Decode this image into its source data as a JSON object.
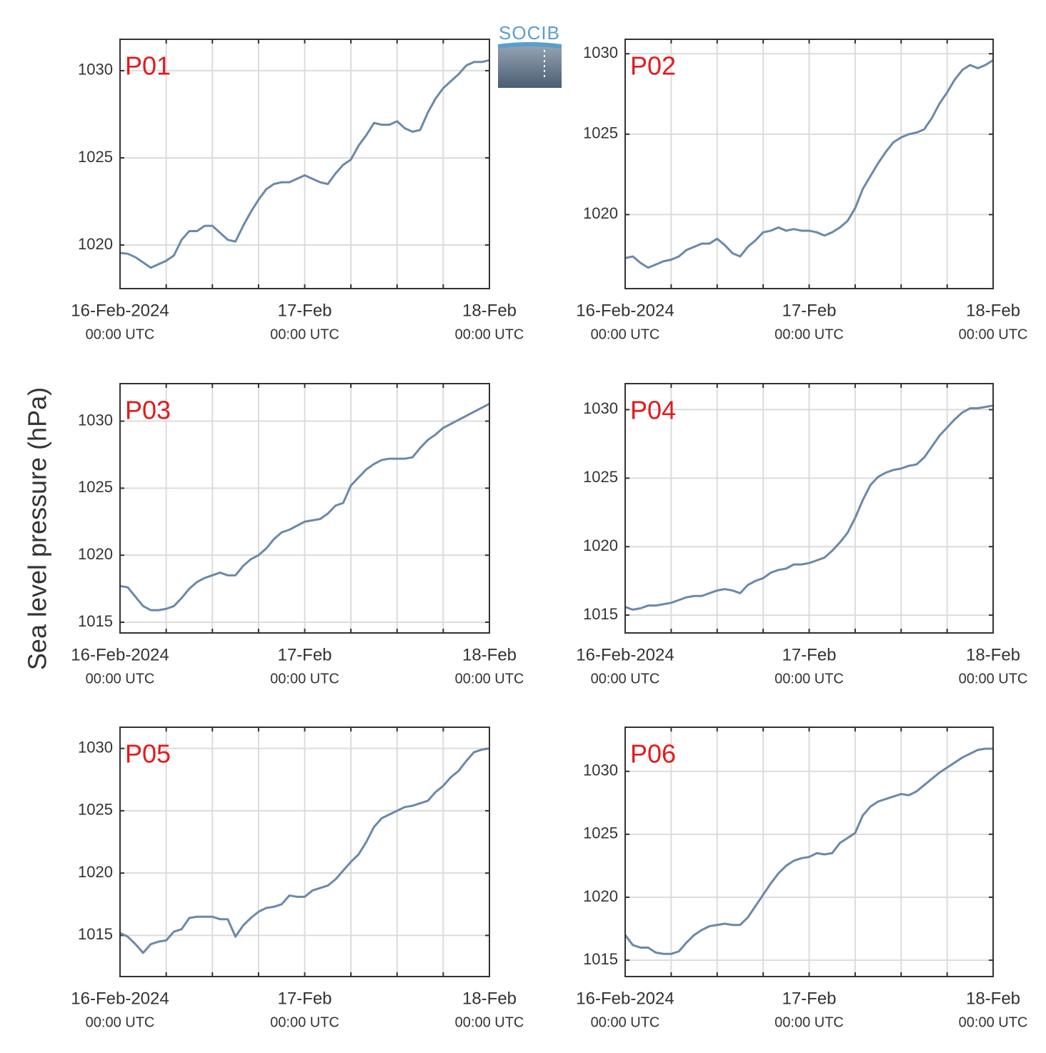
{
  "ylabel": "Sea level pressure (hPa)",
  "logo": "SOCIB",
  "chart_data": [
    {
      "type": "line",
      "title": "P01",
      "color": "#6a89aa",
      "grid": true,
      "x": [
        "2024-02-16 00:00",
        "2024-02-16 01:00",
        "2024-02-16 02:00",
        "2024-02-16 03:00",
        "2024-02-16 04:00",
        "2024-02-16 05:00",
        "2024-02-16 06:00",
        "2024-02-16 07:00",
        "2024-02-16 08:00",
        "2024-02-16 09:00",
        "2024-02-16 10:00",
        "2024-02-16 11:00",
        "2024-02-16 12:00",
        "2024-02-16 13:00",
        "2024-02-16 14:00",
        "2024-02-16 15:00",
        "2024-02-16 16:00",
        "2024-02-16 17:00",
        "2024-02-16 18:00",
        "2024-02-16 19:00",
        "2024-02-16 20:00",
        "2024-02-16 21:00",
        "2024-02-16 22:00",
        "2024-02-16 23:00",
        "2024-02-17 00:00",
        "2024-02-17 01:00",
        "2024-02-17 02:00",
        "2024-02-17 03:00",
        "2024-02-17 04:00",
        "2024-02-17 05:00",
        "2024-02-17 06:00",
        "2024-02-17 07:00",
        "2024-02-17 08:00",
        "2024-02-17 09:00",
        "2024-02-17 10:00",
        "2024-02-17 11:00",
        "2024-02-17 12:00",
        "2024-02-17 13:00",
        "2024-02-17 14:00",
        "2024-02-17 15:00",
        "2024-02-17 16:00",
        "2024-02-17 17:00",
        "2024-02-17 18:00",
        "2024-02-17 19:00",
        "2024-02-17 20:00",
        "2024-02-17 21:00",
        "2024-02-17 22:00",
        "2024-02-17 23:00",
        "2024-02-18 00:00"
      ],
      "values": [
        1019.55,
        1019.5,
        1019.3,
        1019.0,
        1018.7,
        1018.9,
        1019.1,
        1019.4,
        1020.3,
        1020.8,
        1020.8,
        1021.1,
        1021.1,
        1020.7,
        1020.3,
        1020.2,
        1021.1,
        1021.9,
        1022.6,
        1023.2,
        1023.5,
        1023.6,
        1023.6,
        1023.8,
        1024.0,
        1023.8,
        1023.6,
        1023.5,
        1024.1,
        1024.6,
        1024.9,
        1025.7,
        1026.3,
        1027.0,
        1026.9,
        1026.9,
        1027.1,
        1026.7,
        1026.5,
        1026.6,
        1027.6,
        1028.4,
        1029.0,
        1029.4,
        1029.8,
        1030.3,
        1030.5,
        1030.5,
        1030.6
      ],
      "xlim": [
        "2024-02-16 00:00",
        "2024-02-18 00:00"
      ],
      "xticks": [
        {
          "value": "2024-02-16 00:00",
          "label": [
            "16-Feb-2024",
            "00:00 UTC"
          ]
        },
        "2024-02-16 06:00",
        "2024-02-16 12:00",
        "2024-02-16 18:00",
        {
          "value": "2024-02-17 00:00",
          "label": [
            "17-Feb",
            "00:00 UTC"
          ]
        },
        "2024-02-17 06:00",
        "2024-02-17 12:00",
        "2024-02-17 18:00",
        {
          "value": "2024-02-18 00:00",
          "label": [
            "18-Feb",
            "00:00 UTC"
          ]
        }
      ],
      "ylim": [
        1017.5,
        1031.8
      ],
      "yticks": [
        1020,
        1025,
        1030
      ]
    },
    {
      "type": "line",
      "title": "P02",
      "color": "#6a89aa",
      "grid": true,
      "x": [
        "2024-02-16 00:00",
        "2024-02-16 01:00",
        "2024-02-16 02:00",
        "2024-02-16 03:00",
        "2024-02-16 04:00",
        "2024-02-16 05:00",
        "2024-02-16 06:00",
        "2024-02-16 07:00",
        "2024-02-16 08:00",
        "2024-02-16 09:00",
        "2024-02-16 10:00",
        "2024-02-16 11:00",
        "2024-02-16 12:00",
        "2024-02-16 13:00",
        "2024-02-16 14:00",
        "2024-02-16 15:00",
        "2024-02-16 16:00",
        "2024-02-16 17:00",
        "2024-02-16 18:00",
        "2024-02-16 19:00",
        "2024-02-16 20:00",
        "2024-02-16 21:00",
        "2024-02-16 22:00",
        "2024-02-16 23:00",
        "2024-02-17 00:00",
        "2024-02-17 01:00",
        "2024-02-17 02:00",
        "2024-02-17 03:00",
        "2024-02-17 04:00",
        "2024-02-17 05:00",
        "2024-02-17 06:00",
        "2024-02-17 07:00",
        "2024-02-17 08:00",
        "2024-02-17 09:00",
        "2024-02-17 10:00",
        "2024-02-17 11:00",
        "2024-02-17 12:00",
        "2024-02-17 13:00",
        "2024-02-17 14:00",
        "2024-02-17 15:00",
        "2024-02-17 16:00",
        "2024-02-17 17:00",
        "2024-02-17 18:00",
        "2024-02-17 19:00",
        "2024-02-17 20:00",
        "2024-02-17 21:00",
        "2024-02-17 22:00",
        "2024-02-17 23:00",
        "2024-02-18 00:00"
      ],
      "values": [
        1017.3,
        1017.4,
        1017.0,
        1016.7,
        1016.9,
        1017.1,
        1017.2,
        1017.4,
        1017.8,
        1018.0,
        1018.2,
        1018.2,
        1018.5,
        1018.1,
        1017.6,
        1017.4,
        1018.0,
        1018.4,
        1018.9,
        1019.0,
        1019.2,
        1019.0,
        1019.1,
        1019.0,
        1019.0,
        1018.9,
        1018.7,
        1018.9,
        1019.2,
        1019.6,
        1020.4,
        1021.6,
        1022.4,
        1023.2,
        1023.9,
        1024.5,
        1024.8,
        1025.0,
        1025.1,
        1025.3,
        1026.0,
        1026.9,
        1027.6,
        1028.4,
        1029.0,
        1029.3,
        1029.1,
        1029.3,
        1029.6
      ],
      "xlim": [
        "2024-02-16 00:00",
        "2024-02-18 00:00"
      ],
      "xticks": [
        {
          "value": "2024-02-16 00:00",
          "label": [
            "16-Feb-2024",
            "00:00 UTC"
          ]
        },
        "2024-02-16 06:00",
        "2024-02-16 12:00",
        "2024-02-16 18:00",
        {
          "value": "2024-02-17 00:00",
          "label": [
            "17-Feb",
            "00:00 UTC"
          ]
        },
        "2024-02-17 06:00",
        "2024-02-17 12:00",
        "2024-02-17 18:00",
        {
          "value": "2024-02-18 00:00",
          "label": [
            "18-Feb",
            "00:00 UTC"
          ]
        }
      ],
      "ylim": [
        1015.4,
        1030.9
      ],
      "yticks": [
        1020,
        1025,
        1030
      ]
    },
    {
      "type": "line",
      "title": "P03",
      "color": "#6a89aa",
      "grid": true,
      "x": [
        "2024-02-16 00:00",
        "2024-02-16 01:00",
        "2024-02-16 02:00",
        "2024-02-16 03:00",
        "2024-02-16 04:00",
        "2024-02-16 05:00",
        "2024-02-16 06:00",
        "2024-02-16 07:00",
        "2024-02-16 08:00",
        "2024-02-16 09:00",
        "2024-02-16 10:00",
        "2024-02-16 11:00",
        "2024-02-16 12:00",
        "2024-02-16 13:00",
        "2024-02-16 14:00",
        "2024-02-16 15:00",
        "2024-02-16 16:00",
        "2024-02-16 17:00",
        "2024-02-16 18:00",
        "2024-02-16 19:00",
        "2024-02-16 20:00",
        "2024-02-16 21:00",
        "2024-02-16 22:00",
        "2024-02-16 23:00",
        "2024-02-17 00:00",
        "2024-02-17 01:00",
        "2024-02-17 02:00",
        "2024-02-17 03:00",
        "2024-02-17 04:00",
        "2024-02-17 05:00",
        "2024-02-17 06:00",
        "2024-02-17 07:00",
        "2024-02-17 08:00",
        "2024-02-17 09:00",
        "2024-02-17 10:00",
        "2024-02-17 11:00",
        "2024-02-17 12:00",
        "2024-02-17 13:00",
        "2024-02-17 14:00",
        "2024-02-17 15:00",
        "2024-02-17 16:00",
        "2024-02-17 17:00",
        "2024-02-17 18:00",
        "2024-02-17 19:00",
        "2024-02-17 20:00",
        "2024-02-17 21:00",
        "2024-02-17 22:00",
        "2024-02-17 23:00",
        "2024-02-18 00:00"
      ],
      "values": [
        1017.7,
        1017.6,
        1016.9,
        1016.2,
        1015.9,
        1015.9,
        1016.0,
        1016.2,
        1016.8,
        1017.5,
        1018.0,
        1018.3,
        1018.5,
        1018.7,
        1018.5,
        1018.5,
        1019.2,
        1019.7,
        1020.0,
        1020.5,
        1021.2,
        1021.7,
        1021.9,
        1022.2,
        1022.5,
        1022.6,
        1022.7,
        1023.1,
        1023.7,
        1023.9,
        1025.2,
        1025.8,
        1026.4,
        1026.8,
        1027.1,
        1027.2,
        1027.2,
        1027.2,
        1027.3,
        1028.0,
        1028.6,
        1029.0,
        1029.5,
        1029.8,
        1030.1,
        1030.4,
        1030.7,
        1031.0,
        1031.3
      ],
      "xlim": [
        "2024-02-16 00:00",
        "2024-02-18 00:00"
      ],
      "xticks": [
        {
          "value": "2024-02-16 00:00",
          "label": [
            "16-Feb-2024",
            "00:00 UTC"
          ]
        },
        "2024-02-16 06:00",
        "2024-02-16 12:00",
        "2024-02-16 18:00",
        {
          "value": "2024-02-17 00:00",
          "label": [
            "17-Feb",
            "00:00 UTC"
          ]
        },
        "2024-02-17 06:00",
        "2024-02-17 12:00",
        "2024-02-17 18:00",
        {
          "value": "2024-02-18 00:00",
          "label": [
            "18-Feb",
            "00:00 UTC"
          ]
        }
      ],
      "ylim": [
        1014.2,
        1032.8
      ],
      "yticks": [
        1015,
        1020,
        1025,
        1030
      ]
    },
    {
      "type": "line",
      "title": "P04",
      "color": "#6a89aa",
      "grid": true,
      "x": [
        "2024-02-16 00:00",
        "2024-02-16 01:00",
        "2024-02-16 02:00",
        "2024-02-16 03:00",
        "2024-02-16 04:00",
        "2024-02-16 05:00",
        "2024-02-16 06:00",
        "2024-02-16 07:00",
        "2024-02-16 08:00",
        "2024-02-16 09:00",
        "2024-02-16 10:00",
        "2024-02-16 11:00",
        "2024-02-16 12:00",
        "2024-02-16 13:00",
        "2024-02-16 14:00",
        "2024-02-16 15:00",
        "2024-02-16 16:00",
        "2024-02-16 17:00",
        "2024-02-16 18:00",
        "2024-02-16 19:00",
        "2024-02-16 20:00",
        "2024-02-16 21:00",
        "2024-02-16 22:00",
        "2024-02-16 23:00",
        "2024-02-17 00:00",
        "2024-02-17 01:00",
        "2024-02-17 02:00",
        "2024-02-17 03:00",
        "2024-02-17 04:00",
        "2024-02-17 05:00",
        "2024-02-17 06:00",
        "2024-02-17 07:00",
        "2024-02-17 08:00",
        "2024-02-17 09:00",
        "2024-02-17 10:00",
        "2024-02-17 11:00",
        "2024-02-17 12:00",
        "2024-02-17 13:00",
        "2024-02-17 14:00",
        "2024-02-17 15:00",
        "2024-02-17 16:00",
        "2024-02-17 17:00",
        "2024-02-17 18:00",
        "2024-02-17 19:00",
        "2024-02-17 20:00",
        "2024-02-17 21:00",
        "2024-02-17 22:00",
        "2024-02-17 23:00",
        "2024-02-18 00:00"
      ],
      "values": [
        1015.6,
        1015.4,
        1015.5,
        1015.7,
        1015.7,
        1015.8,
        1015.9,
        1016.1,
        1016.3,
        1016.4,
        1016.4,
        1016.6,
        1016.8,
        1016.9,
        1016.8,
        1016.6,
        1017.2,
        1017.5,
        1017.7,
        1018.1,
        1018.3,
        1018.4,
        1018.7,
        1018.7,
        1018.8,
        1019.0,
        1019.2,
        1019.7,
        1020.3,
        1021.0,
        1022.1,
        1023.4,
        1024.5,
        1025.1,
        1025.4,
        1025.6,
        1025.7,
        1025.9,
        1026.0,
        1026.5,
        1027.3,
        1028.1,
        1028.7,
        1029.3,
        1029.8,
        1030.1,
        1030.1,
        1030.2,
        1030.3
      ],
      "xlim": [
        "2024-02-16 00:00",
        "2024-02-18 00:00"
      ],
      "xticks": [
        {
          "value": "2024-02-16 00:00",
          "label": [
            "16-Feb-2024",
            "00:00 UTC"
          ]
        },
        "2024-02-16 06:00",
        "2024-02-16 12:00",
        "2024-02-16 18:00",
        {
          "value": "2024-02-17 00:00",
          "label": [
            "17-Feb",
            "00:00 UTC"
          ]
        },
        "2024-02-17 06:00",
        "2024-02-17 12:00",
        "2024-02-17 18:00",
        {
          "value": "2024-02-18 00:00",
          "label": [
            "18-Feb",
            "00:00 UTC"
          ]
        }
      ],
      "ylim": [
        1013.7,
        1031.9
      ],
      "yticks": [
        1015,
        1020,
        1025,
        1030
      ]
    },
    {
      "type": "line",
      "title": "P05",
      "color": "#6a89aa",
      "grid": true,
      "x": [
        "2024-02-16 00:00",
        "2024-02-16 01:00",
        "2024-02-16 02:00",
        "2024-02-16 03:00",
        "2024-02-16 04:00",
        "2024-02-16 05:00",
        "2024-02-16 06:00",
        "2024-02-16 07:00",
        "2024-02-16 08:00",
        "2024-02-16 09:00",
        "2024-02-16 10:00",
        "2024-02-16 11:00",
        "2024-02-16 12:00",
        "2024-02-16 13:00",
        "2024-02-16 14:00",
        "2024-02-16 15:00",
        "2024-02-16 16:00",
        "2024-02-16 17:00",
        "2024-02-16 18:00",
        "2024-02-16 19:00",
        "2024-02-16 20:00",
        "2024-02-16 21:00",
        "2024-02-16 22:00",
        "2024-02-16 23:00",
        "2024-02-17 00:00",
        "2024-02-17 01:00",
        "2024-02-17 02:00",
        "2024-02-17 03:00",
        "2024-02-17 04:00",
        "2024-02-17 05:00",
        "2024-02-17 06:00",
        "2024-02-17 07:00",
        "2024-02-17 08:00",
        "2024-02-17 09:00",
        "2024-02-17 10:00",
        "2024-02-17 11:00",
        "2024-02-17 12:00",
        "2024-02-17 13:00",
        "2024-02-17 14:00",
        "2024-02-17 15:00",
        "2024-02-17 16:00",
        "2024-02-17 17:00",
        "2024-02-17 18:00",
        "2024-02-17 19:00",
        "2024-02-17 20:00",
        "2024-02-17 21:00",
        "2024-02-17 22:00",
        "2024-02-17 23:00",
        "2024-02-18 00:00"
      ],
      "values": [
        1015.2,
        1014.9,
        1014.3,
        1013.6,
        1014.3,
        1014.5,
        1014.6,
        1015.3,
        1015.5,
        1016.4,
        1016.5,
        1016.5,
        1016.5,
        1016.3,
        1016.3,
        1014.9,
        1015.8,
        1016.4,
        1016.9,
        1017.2,
        1017.3,
        1017.5,
        1018.2,
        1018.1,
        1018.1,
        1018.6,
        1018.8,
        1019.0,
        1019.5,
        1020.2,
        1020.9,
        1021.5,
        1022.5,
        1023.7,
        1024.4,
        1024.7,
        1025.0,
        1025.3,
        1025.4,
        1025.6,
        1025.8,
        1026.5,
        1027.0,
        1027.7,
        1028.2,
        1029.0,
        1029.7,
        1029.9,
        1030.0
      ],
      "xlim": [
        "2024-02-16 00:00",
        "2024-02-18 00:00"
      ],
      "xticks": [
        {
          "value": "2024-02-16 00:00",
          "label": [
            "16-Feb-2024",
            "00:00 UTC"
          ]
        },
        "2024-02-16 06:00",
        "2024-02-16 12:00",
        "2024-02-16 18:00",
        {
          "value": "2024-02-17 00:00",
          "label": [
            "17-Feb",
            "00:00 UTC"
          ]
        },
        "2024-02-17 06:00",
        "2024-02-17 12:00",
        "2024-02-17 18:00",
        {
          "value": "2024-02-18 00:00",
          "label": [
            "18-Feb",
            "00:00 UTC"
          ]
        }
      ],
      "ylim": [
        1011.7,
        1031.7
      ],
      "yticks": [
        1015,
        1020,
        1025,
        1030
      ]
    },
    {
      "type": "line",
      "title": "P06",
      "color": "#6a89aa",
      "grid": true,
      "x": [
        "2024-02-16 00:00",
        "2024-02-16 01:00",
        "2024-02-16 02:00",
        "2024-02-16 03:00",
        "2024-02-16 04:00",
        "2024-02-16 05:00",
        "2024-02-16 06:00",
        "2024-02-16 07:00",
        "2024-02-16 08:00",
        "2024-02-16 09:00",
        "2024-02-16 10:00",
        "2024-02-16 11:00",
        "2024-02-16 12:00",
        "2024-02-16 13:00",
        "2024-02-16 14:00",
        "2024-02-16 15:00",
        "2024-02-16 16:00",
        "2024-02-16 17:00",
        "2024-02-16 18:00",
        "2024-02-16 19:00",
        "2024-02-16 20:00",
        "2024-02-16 21:00",
        "2024-02-16 22:00",
        "2024-02-16 23:00",
        "2024-02-17 00:00",
        "2024-02-17 01:00",
        "2024-02-17 02:00",
        "2024-02-17 03:00",
        "2024-02-17 04:00",
        "2024-02-17 05:00",
        "2024-02-17 06:00",
        "2024-02-17 07:00",
        "2024-02-17 08:00",
        "2024-02-17 09:00",
        "2024-02-17 10:00",
        "2024-02-17 11:00",
        "2024-02-17 12:00",
        "2024-02-17 13:00",
        "2024-02-17 14:00",
        "2024-02-17 15:00",
        "2024-02-17 16:00",
        "2024-02-17 17:00",
        "2024-02-17 18:00",
        "2024-02-17 19:00",
        "2024-02-17 20:00",
        "2024-02-17 21:00",
        "2024-02-17 22:00",
        "2024-02-17 23:00",
        "2024-02-18 00:00"
      ],
      "values": [
        1017.0,
        1016.2,
        1016.0,
        1016.0,
        1015.6,
        1015.5,
        1015.5,
        1015.7,
        1016.4,
        1017.0,
        1017.4,
        1017.7,
        1017.8,
        1017.9,
        1017.8,
        1017.8,
        1018.4,
        1019.3,
        1020.2,
        1021.1,
        1021.9,
        1022.5,
        1022.9,
        1023.1,
        1023.2,
        1023.5,
        1023.4,
        1023.5,
        1024.3,
        1024.7,
        1025.1,
        1026.5,
        1027.2,
        1027.6,
        1027.8,
        1028.0,
        1028.2,
        1028.1,
        1028.4,
        1028.9,
        1029.4,
        1029.9,
        1030.3,
        1030.7,
        1031.1,
        1031.4,
        1031.7,
        1031.8,
        1031.8
      ],
      "xlim": [
        "2024-02-16 00:00",
        "2024-02-18 00:00"
      ],
      "xticks": [
        {
          "value": "2024-02-16 00:00",
          "label": [
            "16-Feb-2024",
            "00:00 UTC"
          ]
        },
        "2024-02-16 06:00",
        "2024-02-16 12:00",
        "2024-02-16 18:00",
        {
          "value": "2024-02-17 00:00",
          "label": [
            "17-Feb",
            "00:00 UTC"
          ]
        },
        "2024-02-17 06:00",
        "2024-02-17 12:00",
        "2024-02-17 18:00",
        {
          "value": "2024-02-18 00:00",
          "label": [
            "18-Feb",
            "00:00 UTC"
          ]
        }
      ],
      "ylim": [
        1013.7,
        1033.5
      ],
      "yticks": [
        1015,
        1020,
        1025,
        1030
      ]
    }
  ]
}
